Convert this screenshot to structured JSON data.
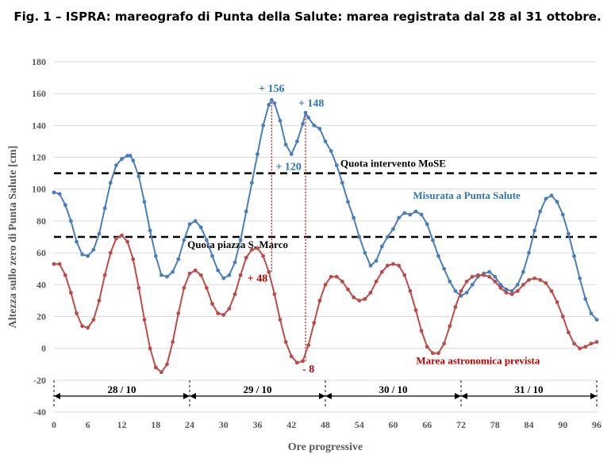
{
  "figure": {
    "title": "Fig. 1 – ISPRA: mareografo di Punta della Salute: marea registrata dal 28 al 31 ottobre."
  },
  "chart_data": {
    "type": "line",
    "xlabel": "Ore progressive",
    "ylabel": "Altezza sullo zero di Punta Salute  [cm]",
    "xlim": [
      0,
      96
    ],
    "ylim": [
      -40,
      180
    ],
    "x_ticks": [
      0,
      6,
      12,
      18,
      24,
      30,
      36,
      42,
      48,
      54,
      60,
      66,
      72,
      78,
      84,
      90,
      96
    ],
    "y_ticks": [
      -40,
      -20,
      0,
      20,
      40,
      60,
      80,
      100,
      120,
      140,
      160,
      180
    ],
    "grid": "horizontal",
    "colors": {
      "measured": "#4a7ebb",
      "predicted": "#be4b48",
      "peak_labels": "#2e75b6",
      "predicted_labels": "#c00000"
    },
    "series": [
      {
        "name": "Misurata a Punta Salute",
        "style": "dotted-line",
        "points": [
          [
            0,
            98
          ],
          [
            1,
            97
          ],
          [
            2,
            90
          ],
          [
            3,
            80
          ],
          [
            4,
            67
          ],
          [
            5,
            59
          ],
          [
            6,
            58
          ],
          [
            7,
            62
          ],
          [
            8,
            72
          ],
          [
            9,
            88
          ],
          [
            10,
            104
          ],
          [
            11,
            115
          ],
          [
            12,
            119
          ],
          [
            13,
            121
          ],
          [
            13.5,
            121
          ],
          [
            14,
            118
          ],
          [
            15,
            108
          ],
          [
            16,
            92
          ],
          [
            17,
            74
          ],
          [
            18,
            58
          ],
          [
            19,
            46
          ],
          [
            20,
            45
          ],
          [
            21,
            48
          ],
          [
            22,
            56
          ],
          [
            23,
            68
          ],
          [
            24,
            78
          ],
          [
            25,
            80
          ],
          [
            26,
            76
          ],
          [
            27,
            68
          ],
          [
            28,
            58
          ],
          [
            29,
            49
          ],
          [
            30,
            44
          ],
          [
            31,
            46
          ],
          [
            32,
            54
          ],
          [
            33,
            68
          ],
          [
            34,
            86
          ],
          [
            35,
            104
          ],
          [
            36,
            122
          ],
          [
            37,
            140
          ],
          [
            38,
            153
          ],
          [
            38.5,
            156
          ],
          [
            39,
            154
          ],
          [
            40,
            143
          ],
          [
            41,
            128
          ],
          [
            42,
            122
          ],
          [
            43,
            130
          ],
          [
            44,
            141
          ],
          [
            44.5,
            148
          ],
          [
            45,
            145
          ],
          [
            46,
            140
          ],
          [
            47,
            138
          ],
          [
            48,
            130
          ],
          [
            49,
            124
          ],
          [
            50,
            115
          ],
          [
            51,
            104
          ],
          [
            52,
            92
          ],
          [
            53,
            82
          ],
          [
            54,
            70
          ],
          [
            55,
            60
          ],
          [
            56,
            52
          ],
          [
            57,
            55
          ],
          [
            58,
            64
          ],
          [
            59,
            70
          ],
          [
            60,
            75
          ],
          [
            61,
            82
          ],
          [
            62,
            85
          ],
          [
            63,
            84
          ],
          [
            64,
            86
          ],
          [
            65,
            84
          ],
          [
            66,
            78
          ],
          [
            67,
            68
          ],
          [
            68,
            58
          ],
          [
            69,
            50
          ],
          [
            70,
            42
          ],
          [
            71,
            36
          ],
          [
            72,
            33
          ],
          [
            73,
            35
          ],
          [
            74,
            40
          ],
          [
            75,
            45
          ],
          [
            76,
            47
          ],
          [
            77,
            48
          ],
          [
            78,
            45
          ],
          [
            79,
            40
          ],
          [
            80,
            37
          ],
          [
            81,
            36
          ],
          [
            82,
            40
          ],
          [
            83,
            48
          ],
          [
            84,
            60
          ],
          [
            85,
            74
          ],
          [
            86,
            86
          ],
          [
            87,
            94
          ],
          [
            88,
            96
          ],
          [
            89,
            92
          ],
          [
            90,
            84
          ],
          [
            91,
            72
          ],
          [
            92,
            58
          ],
          [
            93,
            44
          ],
          [
            94,
            31
          ],
          [
            95,
            22
          ],
          [
            96,
            18
          ]
        ]
      },
      {
        "name": "Marea astronomica prevista",
        "style": "dotted-line",
        "points": [
          [
            0,
            53
          ],
          [
            1,
            53
          ],
          [
            2,
            46
          ],
          [
            3,
            35
          ],
          [
            4,
            22
          ],
          [
            5,
            14
          ],
          [
            6,
            13
          ],
          [
            7,
            18
          ],
          [
            8,
            30
          ],
          [
            9,
            46
          ],
          [
            10,
            60
          ],
          [
            11,
            69
          ],
          [
            12,
            71
          ],
          [
            13,
            67
          ],
          [
            14,
            56
          ],
          [
            15,
            38
          ],
          [
            16,
            18
          ],
          [
            17,
            0
          ],
          [
            18,
            -12
          ],
          [
            19,
            -15
          ],
          [
            20,
            -10
          ],
          [
            21,
            4
          ],
          [
            22,
            22
          ],
          [
            23,
            38
          ],
          [
            24,
            47
          ],
          [
            25,
            49
          ],
          [
            26,
            46
          ],
          [
            27,
            38
          ],
          [
            28,
            28
          ],
          [
            29,
            22
          ],
          [
            30,
            21
          ],
          [
            31,
            25
          ],
          [
            32,
            34
          ],
          [
            33,
            46
          ],
          [
            34,
            57
          ],
          [
            35,
            62
          ],
          [
            36,
            63
          ],
          [
            37,
            58
          ],
          [
            38,
            48
          ],
          [
            39,
            34
          ],
          [
            40,
            18
          ],
          [
            41,
            4
          ],
          [
            42,
            -5
          ],
          [
            43,
            -9
          ],
          [
            44,
            -8
          ],
          [
            45,
            2
          ],
          [
            46,
            16
          ],
          [
            47,
            30
          ],
          [
            48,
            40
          ],
          [
            49,
            45
          ],
          [
            50,
            45
          ],
          [
            51,
            42
          ],
          [
            52,
            37
          ],
          [
            53,
            32
          ],
          [
            54,
            30
          ],
          [
            55,
            31
          ],
          [
            56,
            35
          ],
          [
            57,
            42
          ],
          [
            58,
            48
          ],
          [
            59,
            52
          ],
          [
            60,
            53
          ],
          [
            61,
            52
          ],
          [
            62,
            46
          ],
          [
            63,
            36
          ],
          [
            64,
            24
          ],
          [
            65,
            11
          ],
          [
            66,
            1
          ],
          [
            67,
            -3
          ],
          [
            68,
            -3
          ],
          [
            69,
            3
          ],
          [
            70,
            14
          ],
          [
            71,
            26
          ],
          [
            72,
            36
          ],
          [
            73,
            42
          ],
          [
            74,
            45
          ],
          [
            75,
            46
          ],
          [
            76,
            46
          ],
          [
            77,
            45
          ],
          [
            78,
            42
          ],
          [
            79,
            38
          ],
          [
            80,
            35
          ],
          [
            81,
            34
          ],
          [
            82,
            36
          ],
          [
            83,
            40
          ],
          [
            84,
            43
          ],
          [
            85,
            44
          ],
          [
            86,
            43
          ],
          [
            87,
            41
          ],
          [
            88,
            36
          ],
          [
            89,
            29
          ],
          [
            90,
            20
          ],
          [
            91,
            10
          ],
          [
            92,
            3
          ],
          [
            93,
            0
          ],
          [
            94,
            1
          ],
          [
            95,
            3
          ],
          [
            96,
            4
          ]
        ]
      }
    ],
    "reference_lines": [
      {
        "label": "Quota intervento MoSE",
        "y": 110
      },
      {
        "label": "Quota piazza S. Marco",
        "y": 70
      }
    ],
    "series_labels": [
      {
        "text": "Misurata a Punta Salute",
        "x": 73,
        "y": 94,
        "color": "#2e75b6"
      },
      {
        "text": "Marea astronomica prevista",
        "x": 75,
        "y": -10,
        "color": "#c00000"
      }
    ],
    "annotations": [
      {
        "text": "+ 156",
        "x": 38.5,
        "y": 161,
        "color": "#2e75b6"
      },
      {
        "text": "+ 148",
        "x": 45.5,
        "y": 152,
        "color": "#2e75b6"
      },
      {
        "text": "+ 120",
        "x": 41.5,
        "y": 112,
        "color": "#2e75b6"
      },
      {
        "text": "+ 48",
        "x": 36,
        "y": 42,
        "color": "#c00000"
      },
      {
        "text": "- 8",
        "x": 45,
        "y": -15,
        "color": "#c00000"
      }
    ],
    "vlines": [
      {
        "x": 38.5,
        "from": 48,
        "to": 156,
        "color": "#c00000"
      },
      {
        "x": 44.5,
        "from": -8,
        "to": 148,
        "color": "#c00000"
      }
    ],
    "days": [
      {
        "label": "28 / 10",
        "from": 0,
        "to": 24
      },
      {
        "label": "29 / 10",
        "from": 24,
        "to": 48
      },
      {
        "label": "30 / 10",
        "from": 48,
        "to": 72
      },
      {
        "label": "31 / 10",
        "from": 72,
        "to": 96
      }
    ],
    "days_y": -30
  }
}
